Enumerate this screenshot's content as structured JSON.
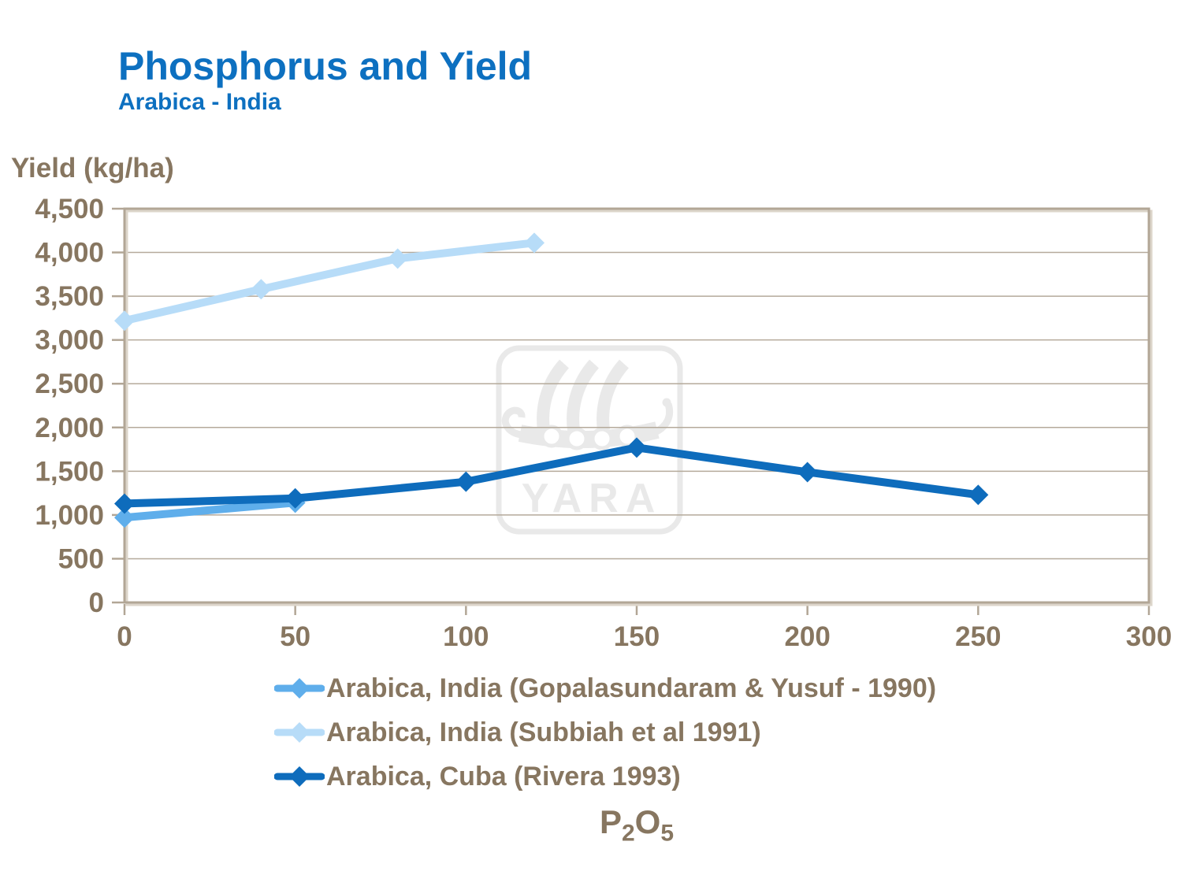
{
  "header": {
    "title": "Phosphorus and Yield",
    "subtitle": "Arabica - India"
  },
  "axis_titles": {
    "y": "Yield (kg/ha)",
    "x": {
      "base1": "P",
      "sub1": "2",
      "base2": "O",
      "sub2": "5"
    }
  },
  "watermark": {
    "text": "YARA"
  },
  "colors": {
    "title_blue": "#0d70c0",
    "label_taupe": "#877660",
    "axis_frame": "#b2a696",
    "gridline": "#b5aa9b",
    "frame_bevel": "#dcd5ca",
    "watermark_gray": "#e9e9e9",
    "series_gopalasundaram": "#5faeeb",
    "series_subbiah": "#b7dcf8",
    "series_cuba": "#0e6cbc"
  },
  "chart_data": {
    "type": "line",
    "title": "Phosphorus and Yield",
    "subtitle": "Arabica - India",
    "xlabel": "P2O5",
    "ylabel": "Yield (kg/ha)",
    "xlim": [
      0,
      300
    ],
    "ylim": [
      0,
      4500
    ],
    "xticks": [
      0,
      50,
      100,
      150,
      200,
      250,
      300
    ],
    "yticks": [
      0,
      500,
      1000,
      1500,
      2000,
      2500,
      3000,
      3500,
      4000,
      4500
    ],
    "ytick_labels": [
      "0",
      "500",
      "1,000",
      "1,500",
      "2,000",
      "2,500",
      "3,000",
      "3,500",
      "4,000",
      "4,500"
    ],
    "grid": "horizontal",
    "legend_position": "below-left",
    "marker": "diamond",
    "series": [
      {
        "name": "Arabica, India (Gopalasundaram & Yusuf - 1990)",
        "color": "#5faeeb",
        "x": [
          0,
          50
        ],
        "y": [
          970,
          1140
        ]
      },
      {
        "name": "Arabica, India (Subbiah et al 1991)",
        "color": "#b7dcf8",
        "x": [
          0,
          40,
          80,
          120
        ],
        "y": [
          3220,
          3580,
          3930,
          4110
        ]
      },
      {
        "name": "Arabica, Cuba (Rivera 1993)",
        "color": "#0e6cbc",
        "x": [
          0,
          50,
          100,
          150,
          200,
          250
        ],
        "y": [
          1130,
          1190,
          1380,
          1770,
          1490,
          1230
        ]
      }
    ]
  }
}
